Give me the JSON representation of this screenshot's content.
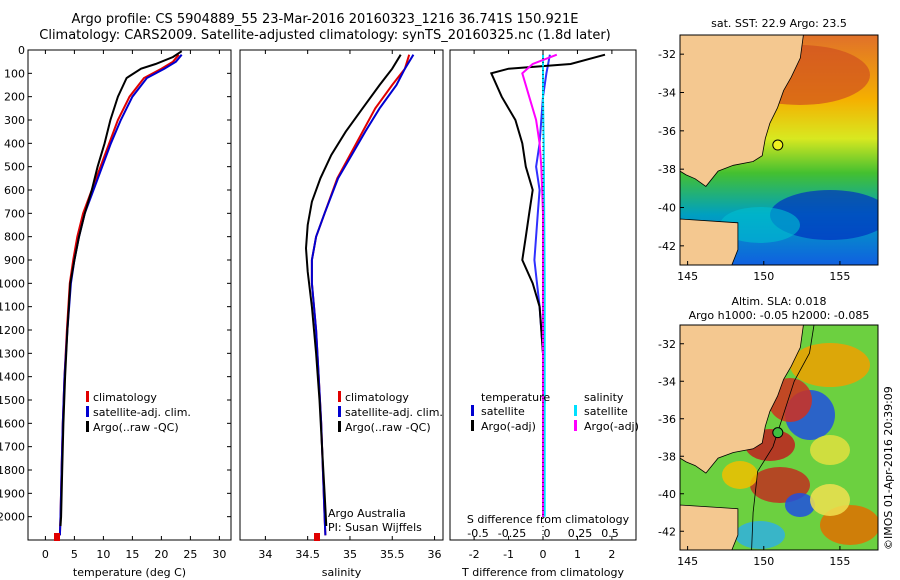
{
  "header": {
    "line1": "Argo profile: CS 5904889_55 23-Mar-2016 20160323_1216 36.741S 150.921E",
    "line2": "Climatology: CARS2009. Satellite-adjusted climatology: synTS_20160325.nc (1.8d later)"
  },
  "footer": {
    "stamp": "©IMOS 01-Apr-2016 20:39:09"
  },
  "colors": {
    "climatology": "#e00000",
    "satellite": "#0000d0",
    "argo": "#000000",
    "t_diff_sat": "#3030ff",
    "s_diff_sat": "#00e0ff",
    "s_diff_argo": "#ff00ff"
  },
  "chart_data": [
    {
      "type": "line",
      "xlabel": "temperature (deg C)",
      "ylabel": "",
      "xlim": [
        -3,
        32
      ],
      "ylim": [
        2100,
        0
      ],
      "xticks": [
        0,
        5,
        10,
        15,
        20,
        25,
        30
      ],
      "yticks": [
        0,
        100,
        200,
        300,
        400,
        500,
        600,
        700,
        800,
        900,
        1000,
        1100,
        1200,
        1300,
        1400,
        1500,
        1600,
        1700,
        1800,
        1900,
        2000
      ],
      "legend": [
        "climatology",
        "satellite-adj. clim.",
        "Argo(..raw -QC)"
      ],
      "series": [
        {
          "name": "climatology",
          "color": "#e00000",
          "points": [
            [
              23,
              20
            ],
            [
              22,
              50
            ],
            [
              20,
              80
            ],
            [
              17,
              120
            ],
            [
              14.5,
              200
            ],
            [
              12.5,
              300
            ],
            [
              11,
              400
            ],
            [
              9.5,
              500
            ],
            [
              8,
              600
            ],
            [
              6.5,
              700
            ],
            [
              5.5,
              800
            ],
            [
              4.8,
              900
            ],
            [
              4.2,
              1000
            ],
            [
              3.7,
              1200
            ],
            [
              3.3,
              1400
            ],
            [
              3,
              1600
            ],
            [
              2.8,
              1800
            ],
            [
              2.6,
              2000
            ],
            [
              2.5,
              2080
            ]
          ]
        },
        {
          "name": "satellite-adj. clim.",
          "color": "#0000d0",
          "points": [
            [
              23.5,
              20
            ],
            [
              22.5,
              50
            ],
            [
              20.5,
              80
            ],
            [
              17.5,
              120
            ],
            [
              15,
              200
            ],
            [
              13,
              300
            ],
            [
              11.3,
              400
            ],
            [
              9.8,
              500
            ],
            [
              8.3,
              600
            ],
            [
              6.8,
              700
            ],
            [
              5.8,
              800
            ],
            [
              5,
              900
            ],
            [
              4.4,
              1000
            ],
            [
              3.8,
              1200
            ],
            [
              3.3,
              1400
            ],
            [
              3,
              1600
            ],
            [
              2.8,
              1800
            ],
            [
              2.6,
              2000
            ],
            [
              2.5,
              2080
            ]
          ]
        },
        {
          "name": "Argo(..raw -QC)",
          "color": "#000000",
          "points": [
            [
              23.5,
              5
            ],
            [
              22,
              30
            ],
            [
              19,
              60
            ],
            [
              16.5,
              80
            ],
            [
              14,
              120
            ],
            [
              12.5,
              200
            ],
            [
              11.2,
              300
            ],
            [
              10.2,
              400
            ],
            [
              9,
              500
            ],
            [
              8,
              600
            ],
            [
              6.8,
              700
            ],
            [
              5.8,
              800
            ],
            [
              5,
              900
            ],
            [
              4.3,
              1000
            ],
            [
              3.8,
              1200
            ],
            [
              3.4,
              1400
            ],
            [
              3.1,
              1600
            ],
            [
              2.9,
              1800
            ],
            [
              2.7,
              2000
            ],
            [
              2.6,
              2040
            ]
          ]
        }
      ]
    },
    {
      "type": "line",
      "xlabel": "salinity",
      "ylabel": "",
      "xlim": [
        33.7,
        36.1
      ],
      "ylim": [
        2100,
        0
      ],
      "xticks": [
        34,
        34.5,
        35,
        35.5,
        36
      ],
      "legend": [
        "climatology",
        "satellite-adj. clim.",
        "Argo(..raw -QC)"
      ],
      "annotation": [
        "Argo Australia",
        "PI: Susan Wijffels"
      ],
      "series": [
        {
          "name": "climatology",
          "color": "#e00000",
          "points": [
            [
              35.7,
              20
            ],
            [
              35.65,
              80
            ],
            [
              35.5,
              150
            ],
            [
              35.3,
              250
            ],
            [
              35.15,
              350
            ],
            [
              35,
              450
            ],
            [
              34.85,
              550
            ],
            [
              34.7,
              700
            ],
            [
              34.6,
              800
            ],
            [
              34.55,
              900
            ],
            [
              34.55,
              1000
            ],
            [
              34.6,
              1200
            ],
            [
              34.63,
              1400
            ],
            [
              34.66,
              1600
            ],
            [
              34.68,
              1800
            ],
            [
              34.7,
              2000
            ],
            [
              34.71,
              2080
            ]
          ]
        },
        {
          "name": "satellite-adj. clim.",
          "color": "#0000d0",
          "points": [
            [
              35.75,
              20
            ],
            [
              35.65,
              80
            ],
            [
              35.55,
              150
            ],
            [
              35.35,
              250
            ],
            [
              35.18,
              350
            ],
            [
              35.02,
              450
            ],
            [
              34.86,
              550
            ],
            [
              34.7,
              700
            ],
            [
              34.6,
              800
            ],
            [
              34.55,
              900
            ],
            [
              34.55,
              1000
            ],
            [
              34.6,
              1200
            ],
            [
              34.63,
              1400
            ],
            [
              34.66,
              1600
            ],
            [
              34.68,
              1800
            ],
            [
              34.7,
              2000
            ],
            [
              34.71,
              2080
            ]
          ]
        },
        {
          "name": "Argo(..raw -QC)",
          "color": "#000000",
          "points": [
            [
              35.6,
              20
            ],
            [
              35.5,
              80
            ],
            [
              35.35,
              150
            ],
            [
              35.15,
              250
            ],
            [
              34.95,
              350
            ],
            [
              34.78,
              450
            ],
            [
              34.65,
              550
            ],
            [
              34.55,
              650
            ],
            [
              34.5,
              750
            ],
            [
              34.48,
              850
            ],
            [
              34.5,
              950
            ],
            [
              34.55,
              1100
            ],
            [
              34.6,
              1300
            ],
            [
              34.64,
              1500
            ],
            [
              34.67,
              1700
            ],
            [
              34.7,
              1900
            ],
            [
              34.72,
              2040
            ]
          ]
        }
      ]
    },
    {
      "type": "line",
      "xlabel": "T difference from climatology",
      "x2label": "S difference from climatology",
      "xlim": [
        -2.7,
        2.7
      ],
      "ylim": [
        2100,
        0
      ],
      "xticks": [
        -2,
        -1,
        0,
        1,
        2
      ],
      "x2ticks": [
        "-0.5",
        "-0.25",
        "0",
        "0.25",
        "0.5"
      ],
      "legend_t": [
        "temperature",
        "satellite",
        "Argo(-adj)"
      ],
      "legend_s": [
        "salinity",
        "satellite",
        "Argo(-adj)"
      ],
      "series": [
        {
          "name": "satellite",
          "color": "#3030ff",
          "points": [
            [
              0.2,
              20
            ],
            [
              0.1,
              100
            ],
            [
              0,
              200
            ],
            [
              -0.05,
              300
            ],
            [
              -0.1,
              400
            ],
            [
              -0.2,
              500
            ],
            [
              -0.1,
              600
            ],
            [
              -0.15,
              700
            ],
            [
              -0.2,
              800
            ],
            [
              -0.25,
              900
            ],
            [
              -0.1,
              1100
            ],
            [
              0,
              1300
            ],
            [
              0,
              1600
            ],
            [
              0,
              2000
            ]
          ]
        },
        {
          "name": "Argo(-adj)",
          "color": "#000000",
          "points": [
            [
              1.8,
              20
            ],
            [
              0.8,
              60
            ],
            [
              -1,
              80
            ],
            [
              -1.5,
              100
            ],
            [
              -1.2,
              200
            ],
            [
              -0.8,
              300
            ],
            [
              -0.6,
              400
            ],
            [
              -0.5,
              500
            ],
            [
              -0.3,
              600
            ],
            [
              -0.4,
              700
            ],
            [
              -0.5,
              800
            ],
            [
              -0.6,
              900
            ],
            [
              -0.3,
              1000
            ],
            [
              -0.1,
              1100
            ],
            [
              0,
              1300
            ],
            [
              0.05,
              1500
            ],
            [
              0,
              1700
            ],
            [
              0,
              1900
            ],
            [
              0,
              2000
            ]
          ]
        },
        {
          "name": "salinity satellite",
          "color": "#00e0ff",
          "points": [
            [
              0,
              20
            ],
            [
              0,
              200
            ],
            [
              0.02,
              400
            ],
            [
              0.03,
              600
            ],
            [
              0.04,
              800
            ],
            [
              0.05,
              1000
            ],
            [
              0.05,
              1400
            ],
            [
              0.05,
              1800
            ],
            [
              0.05,
              2000
            ]
          ]
        },
        {
          "name": "salinity Argo(-adj)",
          "color": "#ff00ff",
          "points": [
            [
              0.4,
              20
            ],
            [
              -0.3,
              60
            ],
            [
              -0.6,
              100
            ],
            [
              -0.4,
              200
            ],
            [
              -0.2,
              300
            ],
            [
              -0.1,
              400
            ],
            [
              -0.05,
              500
            ],
            [
              0,
              700
            ],
            [
              0,
              1000
            ],
            [
              0,
              2000
            ]
          ]
        }
      ]
    },
    {
      "type": "heatmap",
      "title": "sat. SST: 22.9 Argo: 23.5",
      "xticks": [
        145,
        150,
        155
      ],
      "yticks": [
        -32,
        -34,
        -36,
        -38,
        -40,
        -42
      ],
      "xlim": [
        144.5,
        157.5
      ],
      "ylim": [
        -43,
        -31
      ],
      "marker": {
        "lon": 150.921,
        "lat": -36.741
      }
    },
    {
      "type": "heatmap",
      "title": "Altim. SLA: 0.018",
      "subtitle": "Argo h1000: -0.05 h2000: -0.085",
      "xticks": [
        145,
        150,
        155
      ],
      "yticks": [
        -32,
        -34,
        -36,
        -38,
        -40,
        -42
      ],
      "xlim": [
        144.5,
        157.5
      ],
      "ylim": [
        -43,
        -31
      ],
      "marker": {
        "lon": 150.921,
        "lat": -36.741
      }
    }
  ]
}
